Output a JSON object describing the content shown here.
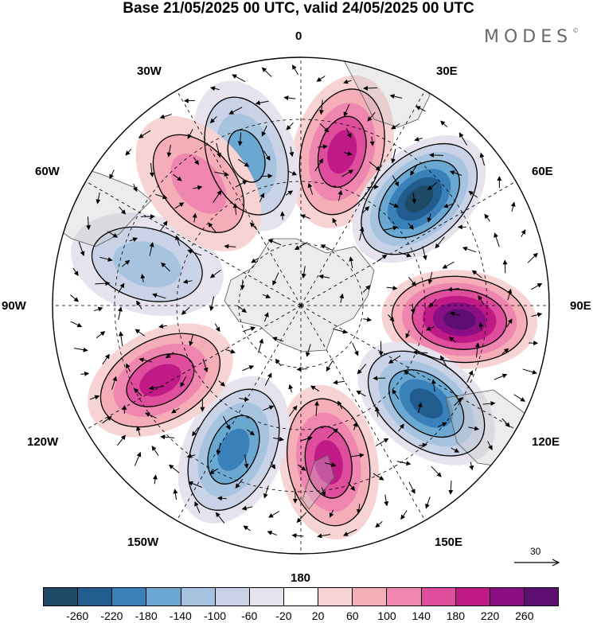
{
  "title": "Base 21/05/2025 00 UTC, valid 24/05/2025 00 UTC",
  "brand": "MODES",
  "brand_mark": "©",
  "longitude_labels": {
    "lon_0": "0",
    "lon_30e": "30E",
    "lon_60e": "60E",
    "lon_90e": "90E",
    "lon_120e": "120E",
    "lon_150e": "150E",
    "lon_180": "180",
    "lon_150w": "150W",
    "lon_120w": "120W",
    "lon_90w": "90W",
    "lon_60w": "60W",
    "lon_30w": "30W"
  },
  "reference_vector": {
    "value": "30"
  },
  "colorbar": {
    "colors": [
      "#1e4a66",
      "#205d8e",
      "#3a80b9",
      "#6aa7d1",
      "#a6c4e0",
      "#c9d2e6",
      "#e6e3ef",
      "#ffffff",
      "#f7d3d3",
      "#f5aeb8",
      "#ee86b0",
      "#de4e9c",
      "#c01a87",
      "#8a0f84",
      "#5c0f70"
    ],
    "tick_labels": [
      "-260",
      "-220",
      "-180",
      "-140",
      "-100",
      "-60",
      "-20",
      "20",
      "60",
      "100",
      "140",
      "180",
      "220",
      "260"
    ]
  },
  "map": {
    "projection": "south-polar-stereographic",
    "anomaly_centers": [
      {
        "lon": 15,
        "sign": "positive",
        "level": 4
      },
      {
        "lon": 48,
        "sign": "negative",
        "level": 6
      },
      {
        "lon": 95,
        "sign": "positive",
        "level": 6
      },
      {
        "lon": 128,
        "sign": "negative",
        "level": 5
      },
      {
        "lon": 170,
        "sign": "positive",
        "level": 4
      },
      {
        "lon": -155,
        "sign": "negative",
        "level": 4
      },
      {
        "lon": -118,
        "sign": "positive",
        "level": 4
      },
      {
        "lon": -75,
        "sign": "negative",
        "level": 2
      },
      {
        "lon": -20,
        "sign": "negative",
        "level": 3
      },
      {
        "lon": -40,
        "sign": "positive",
        "level": 2
      }
    ]
  }
}
